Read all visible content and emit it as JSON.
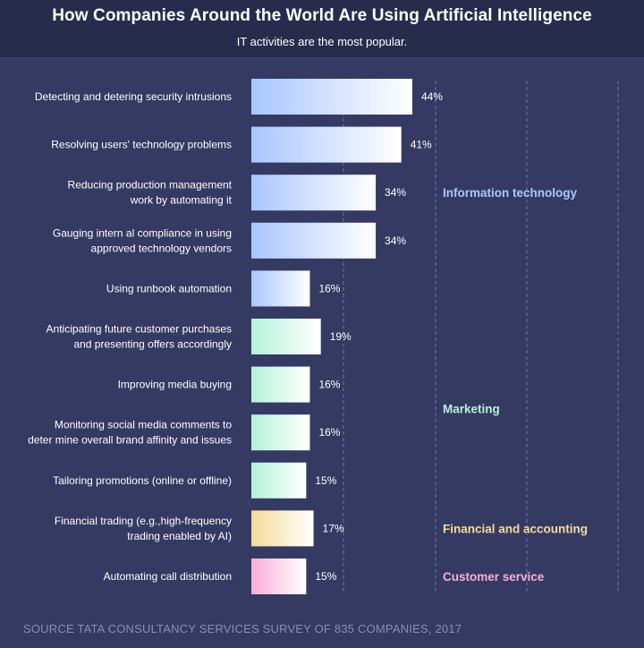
{
  "header": {
    "title": "How Companies Around the World Are Using Artificial Intelligence",
    "subtitle": "IT activities are the most popular."
  },
  "source": "SOURCE TATA CONSULTANCY SERVICES SURVEY OF 835 COMPANIES, 2017",
  "colors": {
    "background": "#353a63",
    "header": "#282c4c",
    "Information technology": "#a9c6ff",
    "Marketing": "#b4f2d8",
    "Financial and accounting": "#f3dc96",
    "Customer service": "#f8aed8"
  },
  "chart_data": {
    "type": "bar",
    "orientation": "horizontal",
    "categories": [
      [
        "Detecting and detering security intrusions"
      ],
      [
        "Resolving users' technology problems"
      ],
      [
        "Reducing production management",
        "work by automating it"
      ],
      [
        "Gauging intern al compliance in using",
        "approved technology vendors"
      ],
      [
        "Using runbook automation"
      ],
      [
        "Anticipating future customer purchases",
        "and presenting offers accordingly"
      ],
      [
        "Improving media buying"
      ],
      [
        "Monitoring social media comments to",
        "deter mine overall brand affinity and issues"
      ],
      [
        "Tailoring promotions (online or offline)"
      ],
      [
        "Financial trading (e.g.,high-frequency",
        "trading enabled by AI)"
      ],
      [
        "Automating call distribution"
      ]
    ],
    "values": [
      44,
      41,
      34,
      34,
      16,
      19,
      16,
      16,
      15,
      17,
      15
    ],
    "value_labels": [
      "44%",
      "41%",
      "34%",
      "34%",
      "16%",
      "19%",
      "16%",
      "16%",
      "15%",
      "17%",
      "15%"
    ],
    "groups": [
      "Information technology",
      "Information technology",
      "Information technology",
      "Information technology",
      "Information technology",
      "Marketing",
      "Marketing",
      "Marketing",
      "Marketing",
      "Financial and accounting",
      "Customer service"
    ],
    "group_labels": [
      {
        "name": "Information technology",
        "rows": [
          0,
          4
        ]
      },
      {
        "name": "Marketing",
        "rows": [
          5,
          8
        ]
      },
      {
        "name": "Financial and accounting",
        "rows": [
          9,
          9
        ]
      },
      {
        "name": "Customer service",
        "rows": [
          10,
          10
        ]
      }
    ],
    "xlim": [
      0,
      100
    ],
    "grid": true,
    "title": "How Companies Around the World Are Using Artificial Intelligence",
    "subtitle": "IT activities are the most popular."
  }
}
